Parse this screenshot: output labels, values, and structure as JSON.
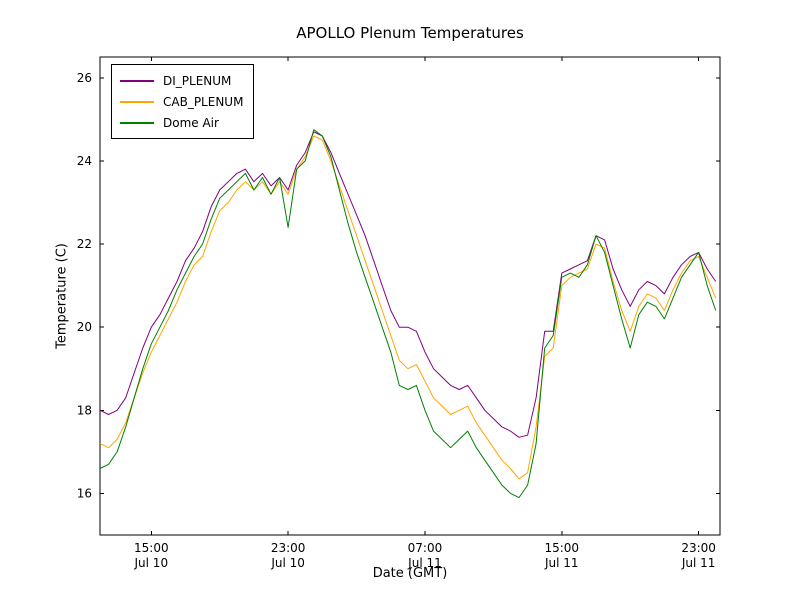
{
  "title": "APOLLO Plenum Temperatures",
  "chart_data": {
    "type": "line",
    "title": "APOLLO Plenum Temperatures",
    "xlabel": "Date (GMT)",
    "ylabel": "Temperature (C)",
    "legend_position": "upper left",
    "grid": false,
    "x_unit": "hours after Jul 10 12:00 GMT",
    "xlim": [
      0,
      36.25
    ],
    "ylim": [
      15,
      26.5
    ],
    "yticks": [
      16,
      18,
      20,
      22,
      24,
      26
    ],
    "xticks": [
      {
        "t": 3,
        "time": "15:00",
        "date": "Jul 10"
      },
      {
        "t": 11,
        "time": "23:00",
        "date": "Jul 10"
      },
      {
        "t": 19,
        "time": "07:00",
        "date": "Jul 11"
      },
      {
        "t": 27,
        "time": "15:00",
        "date": "Jul 11"
      },
      {
        "t": 35,
        "time": "23:00",
        "date": "Jul 11"
      }
    ],
    "x": [
      0,
      0.5,
      1,
      1.5,
      2,
      2.5,
      3,
      3.5,
      4,
      4.5,
      5,
      5.5,
      6,
      6.5,
      7,
      7.5,
      8,
      8.5,
      9,
      9.5,
      10,
      10.5,
      11,
      11.5,
      12,
      12.5,
      13,
      13.5,
      14,
      14.5,
      15,
      15.5,
      16,
      16.5,
      17,
      17.5,
      18,
      18.5,
      19,
      19.5,
      20,
      20.5,
      21,
      21.5,
      22,
      22.5,
      23,
      23.5,
      24,
      24.5,
      25,
      25.5,
      26,
      26.5,
      27,
      27.5,
      28,
      28.5,
      29,
      29.5,
      30,
      30.5,
      31,
      31.5,
      32,
      32.5,
      33,
      33.5,
      34,
      34.5,
      35,
      35.5,
      36
    ],
    "series": [
      {
        "name": "DI_PLENUM",
        "color": "#800080",
        "values": [
          18.0,
          17.9,
          18.0,
          18.3,
          18.9,
          19.5,
          20.0,
          20.3,
          20.7,
          21.1,
          21.6,
          21.9,
          22.3,
          22.9,
          23.3,
          23.5,
          23.7,
          23.8,
          23.5,
          23.7,
          23.4,
          23.6,
          23.3,
          23.9,
          24.2,
          24.7,
          24.6,
          24.2,
          23.7,
          23.2,
          22.7,
          22.2,
          21.6,
          21.0,
          20.4,
          20.0,
          20.0,
          19.9,
          19.4,
          19.0,
          18.8,
          18.6,
          18.5,
          18.6,
          18.3,
          18.0,
          17.8,
          17.6,
          17.5,
          17.35,
          17.4,
          18.3,
          19.9,
          19.9,
          21.3,
          21.4,
          21.5,
          21.6,
          22.2,
          22.1,
          21.4,
          20.9,
          20.5,
          20.9,
          21.1,
          21.0,
          20.8,
          21.2,
          21.5,
          21.7,
          21.8,
          21.4,
          21.1
        ]
      },
      {
        "name": "CAB_PLENUM",
        "color": "#ffa500",
        "values": [
          17.2,
          17.1,
          17.3,
          17.7,
          18.3,
          18.9,
          19.4,
          19.8,
          20.2,
          20.6,
          21.1,
          21.5,
          21.7,
          22.3,
          22.8,
          23.0,
          23.3,
          23.5,
          23.3,
          23.5,
          23.2,
          23.5,
          23.2,
          23.8,
          24.1,
          24.6,
          24.5,
          24.0,
          23.4,
          22.8,
          22.2,
          21.6,
          21.0,
          20.4,
          19.8,
          19.2,
          19.0,
          19.1,
          18.7,
          18.3,
          18.1,
          17.9,
          18.0,
          18.1,
          17.7,
          17.4,
          17.1,
          16.8,
          16.6,
          16.35,
          16.5,
          17.6,
          19.3,
          19.5,
          21.0,
          21.2,
          21.3,
          21.4,
          22.0,
          21.9,
          21.1,
          20.4,
          19.9,
          20.5,
          20.8,
          20.7,
          20.4,
          20.9,
          21.3,
          21.6,
          21.7,
          21.2,
          20.7
        ]
      },
      {
        "name": "Dome Air",
        "color": "#008000",
        "values": [
          16.6,
          16.7,
          17.0,
          17.6,
          18.3,
          19.0,
          19.6,
          20.0,
          20.4,
          20.9,
          21.3,
          21.7,
          22.0,
          22.6,
          23.1,
          23.3,
          23.5,
          23.7,
          23.3,
          23.6,
          23.2,
          23.6,
          22.4,
          23.8,
          24.0,
          24.75,
          24.6,
          24.1,
          23.3,
          22.5,
          21.8,
          21.2,
          20.6,
          20.0,
          19.4,
          18.6,
          18.5,
          18.6,
          18.0,
          17.5,
          17.3,
          17.1,
          17.3,
          17.5,
          17.1,
          16.8,
          16.5,
          16.2,
          16.0,
          15.9,
          16.2,
          17.2,
          19.5,
          19.8,
          21.2,
          21.3,
          21.2,
          21.5,
          22.2,
          21.8,
          21.0,
          20.2,
          19.5,
          20.3,
          20.6,
          20.5,
          20.2,
          20.7,
          21.2,
          21.5,
          21.8,
          21.0,
          20.4
        ]
      }
    ]
  }
}
